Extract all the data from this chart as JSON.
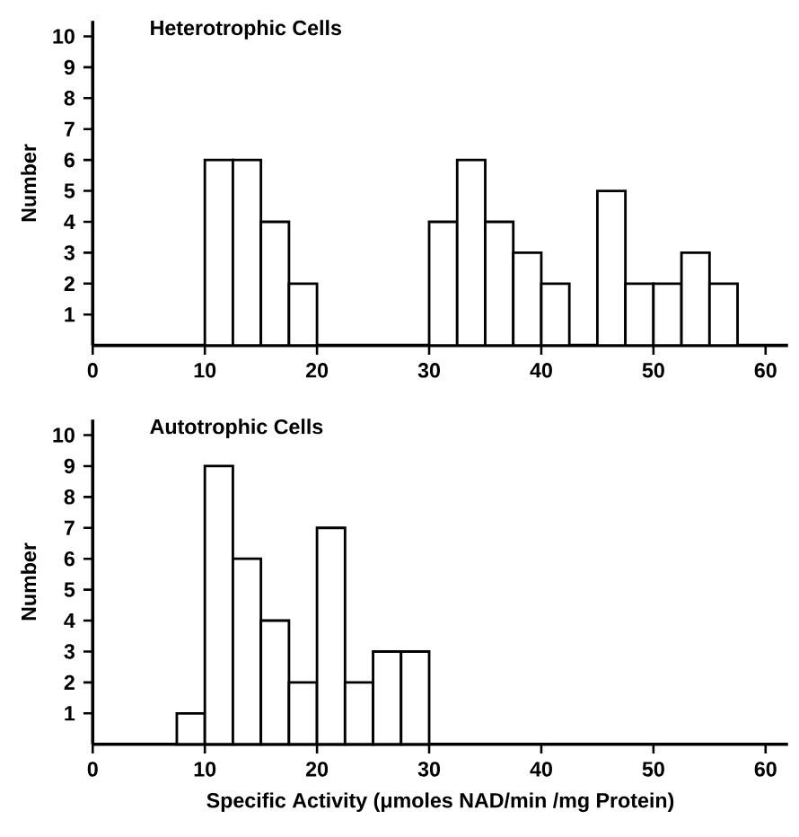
{
  "chart_data": [
    {
      "type": "histogram",
      "title": "Heterotrophic Cells",
      "ylabel": "Number",
      "bins": [
        10,
        12.5,
        15,
        17.5,
        20,
        22.5,
        25,
        27.5,
        30,
        32.5,
        35,
        37.5,
        40,
        42.5,
        45,
        47.5,
        50,
        52.5,
        55,
        57.5
      ],
      "values": [
        6,
        6,
        4,
        2,
        0,
        0,
        0,
        0,
        4,
        6,
        4,
        3,
        2,
        0,
        5,
        2,
        2,
        3,
        2
      ],
      "color": "#ffffff",
      "xlim": [
        0,
        62
      ],
      "xticks": [
        0,
        10,
        20,
        30,
        40,
        50,
        60
      ],
      "ylim": [
        0,
        10.5
      ],
      "yticks": [
        1,
        2,
        3,
        4,
        5,
        6,
        7,
        8,
        9,
        10
      ]
    },
    {
      "type": "histogram",
      "title": "Autotrophic Cells",
      "ylabel": "Number",
      "xlabel": "Specific Activity (μmoles NAD/min /mg Protein)",
      "bins": [
        7.5,
        10,
        12.5,
        15,
        17.5,
        20,
        22.5,
        25,
        27.5,
        30
      ],
      "values": [
        1,
        9,
        6,
        4,
        2,
        7,
        2,
        3,
        3
      ],
      "color": "#ffffff",
      "xlim": [
        0,
        62
      ],
      "xticks": [
        0,
        10,
        20,
        30,
        40,
        50,
        60
      ],
      "ylim": [
        0,
        10.5
      ],
      "yticks": [
        1,
        2,
        3,
        4,
        5,
        6,
        7,
        8,
        9,
        10
      ]
    }
  ]
}
